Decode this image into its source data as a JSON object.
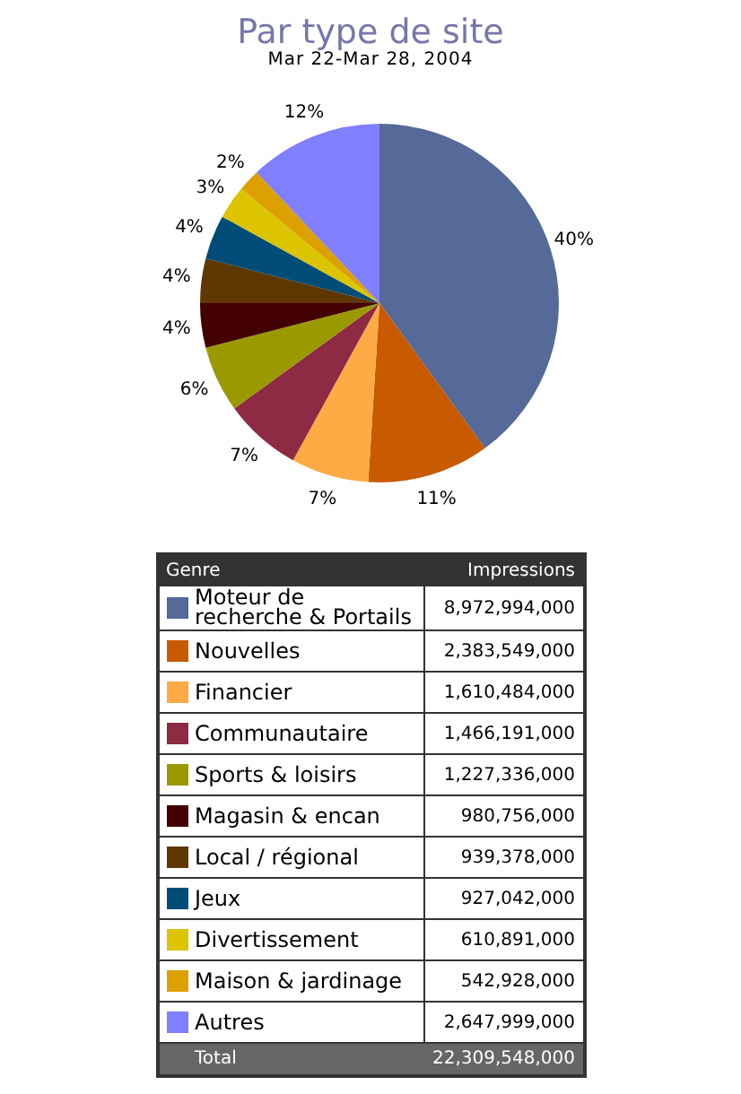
{
  "chart_data": {
    "type": "pie",
    "title": "Par type de site",
    "subtitle": "Mar 22-Mar 28, 2004",
    "categories": [
      "Moteur de recherche & Portails",
      "Nouvelles",
      "Financier",
      "Communautaire",
      "Sports & loisirs",
      "Magasin & encan",
      "Local / régional",
      "Jeux",
      "Divertissement",
      "Maison & jardinage",
      "Autres"
    ],
    "values": [
      40,
      11,
      7,
      7,
      6,
      4,
      4,
      4,
      3,
      2,
      12
    ],
    "colors": [
      "#556a99",
      "#c85a00",
      "#ffaa44",
      "#8f2a44",
      "#9a9a00",
      "#420000",
      "#5e3800",
      "#004d77",
      "#dcc400",
      "#dca000",
      "#8080ff"
    ],
    "value_labels": [
      "40%",
      "11%",
      "7%",
      "7%",
      "6%",
      "4%",
      "4%",
      "4%",
      "3%",
      "2%",
      "12%"
    ],
    "legend": "bottom",
    "legend_title": "Genre",
    "annotations": [
      "Impressions",
      "8,972,994,000",
      "2,383,549,000",
      "1,610,484,000",
      "1,466,191,000",
      "1,227,336,000",
      "980,756,000",
      "939,378,000",
      "927,042,000",
      "610,891,000",
      "542,928,000",
      "2,647,999,000",
      "Total",
      "22,309,548,000"
    ]
  }
}
